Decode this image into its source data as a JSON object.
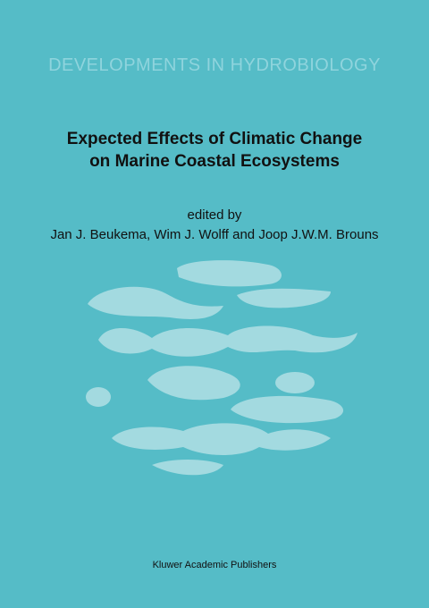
{
  "series": "DEVELOPMENTS IN HYDROBIOLOGY",
  "title": [
    "Expected Effects of Climatic Change",
    "on Marine Coastal Ecosystems"
  ],
  "edited_by": "edited by",
  "editors": "Jan J. Beukema, Wim J. Wolff and Joop J.W.M. Brouns",
  "publisher": "Kluwer Academic Publishers"
}
